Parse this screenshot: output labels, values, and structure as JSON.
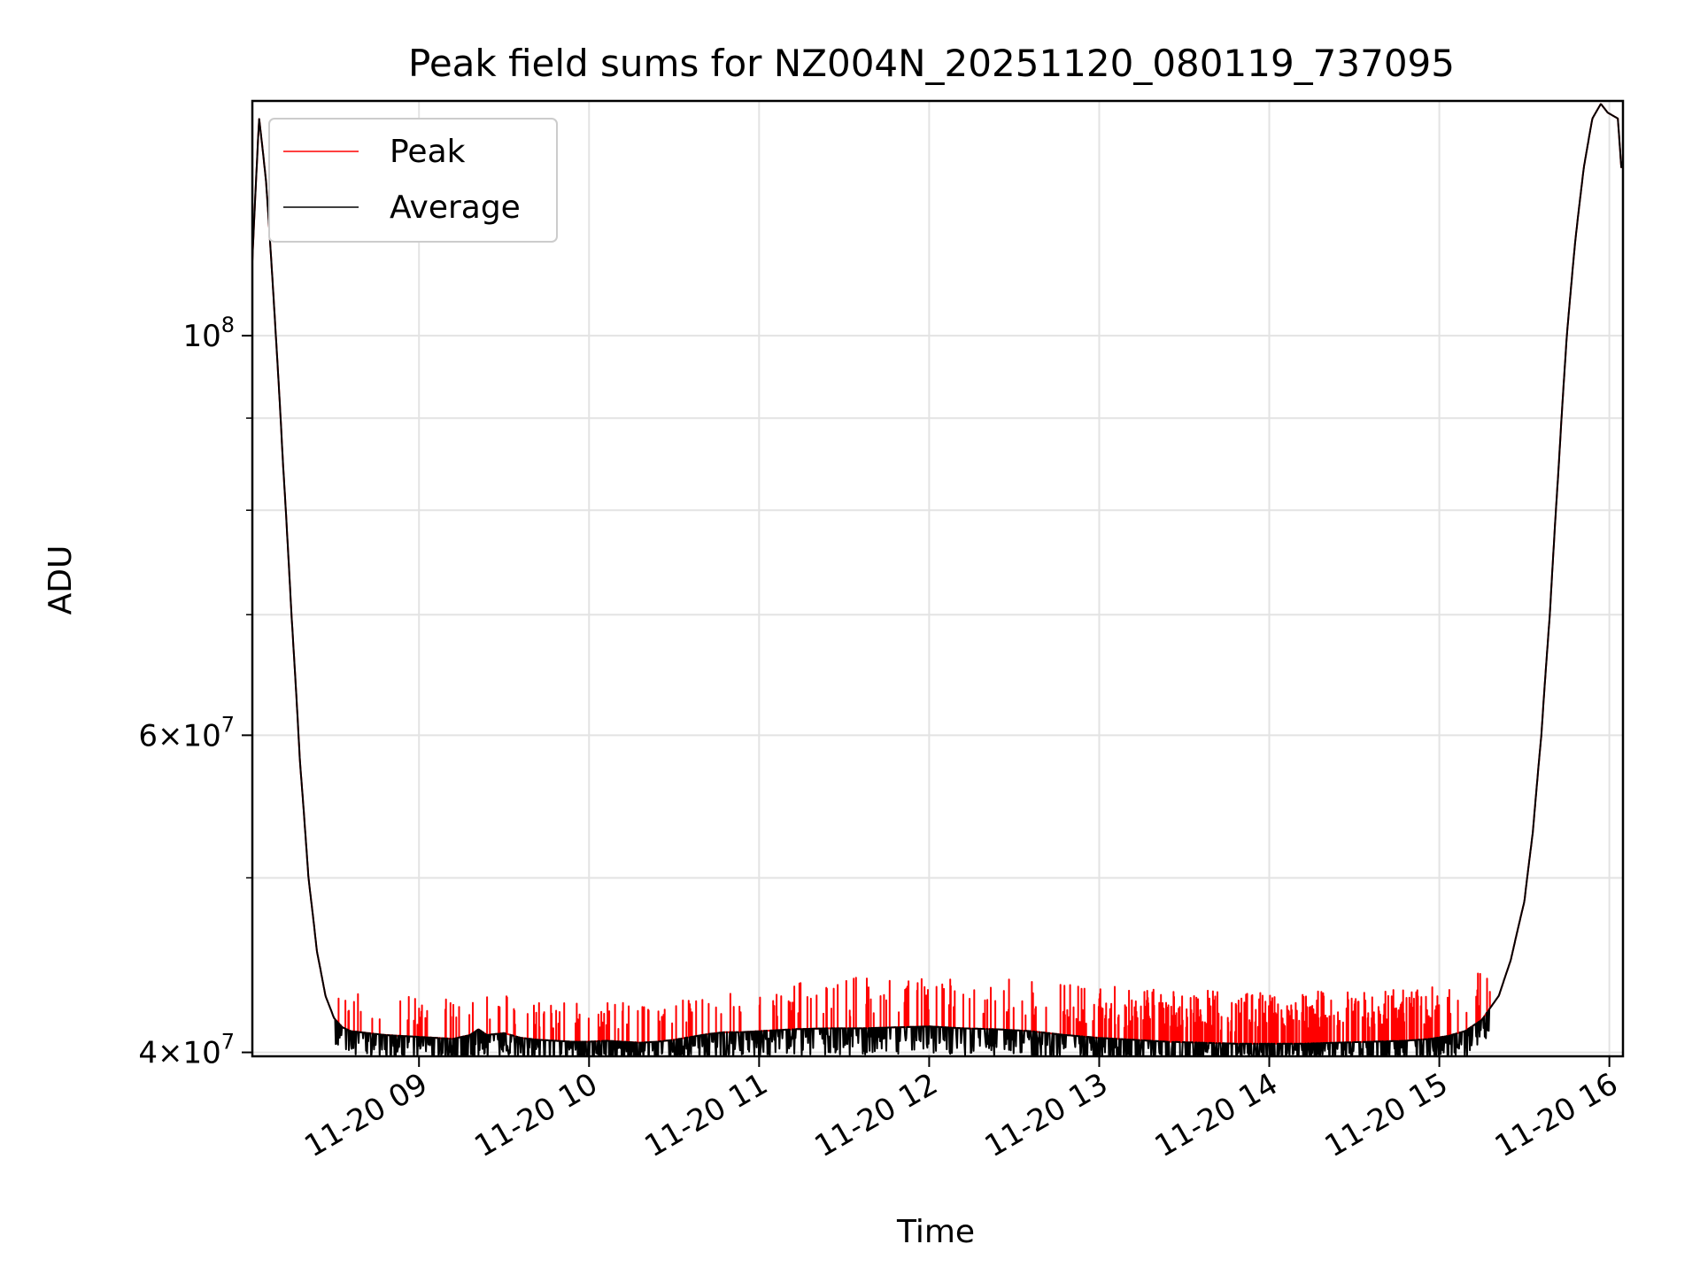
{
  "chart_data": {
    "type": "line",
    "title": "Peak field sums for NZ004N_20251120_080119_737095",
    "xlabel": "Time",
    "ylabel": "ADU",
    "yscale": "log",
    "xlim": [
      8.02,
      16.08
    ],
    "ylim": [
      39800000,
      135000000
    ],
    "grid": true,
    "legend_location": "upper-left",
    "x_ticks": [
      {
        "value": 9,
        "label": "11-20 09"
      },
      {
        "value": 10,
        "label": "11-20 10"
      },
      {
        "value": 11,
        "label": "11-20 11"
      },
      {
        "value": 12,
        "label": "11-20 12"
      },
      {
        "value": 13,
        "label": "11-20 13"
      },
      {
        "value": 14,
        "label": "11-20 14"
      },
      {
        "value": 15,
        "label": "11-20 15"
      },
      {
        "value": 16,
        "label": "11-20 16"
      }
    ],
    "y_major_ticks": [
      {
        "value": 40000000,
        "mantissa": "4",
        "times": "×",
        "base": "10",
        "exp": "7"
      },
      {
        "value": 60000000,
        "mantissa": "6",
        "times": "×",
        "base": "10",
        "exp": "7"
      },
      {
        "value": 100000000,
        "mantissa": "",
        "times": "",
        "base": "10",
        "exp": "8"
      }
    ],
    "y_minor_ticks": [
      50000000,
      70000000,
      80000000,
      90000000
    ],
    "series": [
      {
        "name": "Peak",
        "color": "#ff0000",
        "spike_base_offset": 600000,
        "spike_height_range": [
          1000000,
          3200000
        ]
      },
      {
        "name": "Average",
        "color": "#000000",
        "dip_depth_range": [
          300000,
          1400000
        ]
      }
    ],
    "baseline": {
      "x": [
        8.02,
        8.06,
        8.1,
        8.15,
        8.2,
        8.25,
        8.3,
        8.35,
        8.4,
        8.45,
        8.5,
        8.55,
        8.6,
        8.7,
        8.8,
        8.9,
        9.0,
        9.1,
        9.2,
        9.3,
        9.35,
        9.4,
        9.5,
        9.6,
        9.7,
        9.8,
        9.9,
        10.0,
        10.1,
        10.2,
        10.3,
        10.4,
        10.5,
        10.6,
        10.7,
        10.8,
        10.9,
        11.0,
        11.2,
        11.4,
        11.6,
        11.8,
        12.0,
        12.2,
        12.4,
        12.6,
        12.8,
        13.0,
        13.2,
        13.4,
        13.6,
        13.8,
        14.0,
        14.2,
        14.4,
        14.6,
        14.8,
        14.95,
        15.05,
        15.15,
        15.25,
        15.35,
        15.42,
        15.5,
        15.55,
        15.6,
        15.65,
        15.7,
        15.75,
        15.8,
        15.85,
        15.9,
        15.95,
        15.99,
        16.05,
        16.07,
        16.08
      ],
      "y": [
        110000000,
        132000000,
        122000000,
        103000000,
        85000000,
        70000000,
        58000000,
        50000000,
        45500000,
        43000000,
        41800000,
        41300000,
        41100000,
        41000000,
        40900000,
        40850000,
        40800000,
        40750000,
        40700000,
        40900000,
        41200000,
        40900000,
        41000000,
        40750000,
        40650000,
        40600000,
        40550000,
        40550000,
        40600000,
        40550000,
        40500000,
        40550000,
        40650000,
        40800000,
        40950000,
        41050000,
        41050000,
        41100000,
        41200000,
        41250000,
        41250000,
        41300000,
        41350000,
        41250000,
        41200000,
        41100000,
        40900000,
        40750000,
        40650000,
        40550000,
        40500000,
        40450000,
        40450000,
        40450000,
        40500000,
        40550000,
        40600000,
        40700000,
        40850000,
        41100000,
        41700000,
        43000000,
        45000000,
        48500000,
        53000000,
        60000000,
        70000000,
        84000000,
        100000000,
        113000000,
        124000000,
        132000000,
        134500000,
        133000000,
        132000000,
        124000000,
        125000000
      ]
    }
  }
}
